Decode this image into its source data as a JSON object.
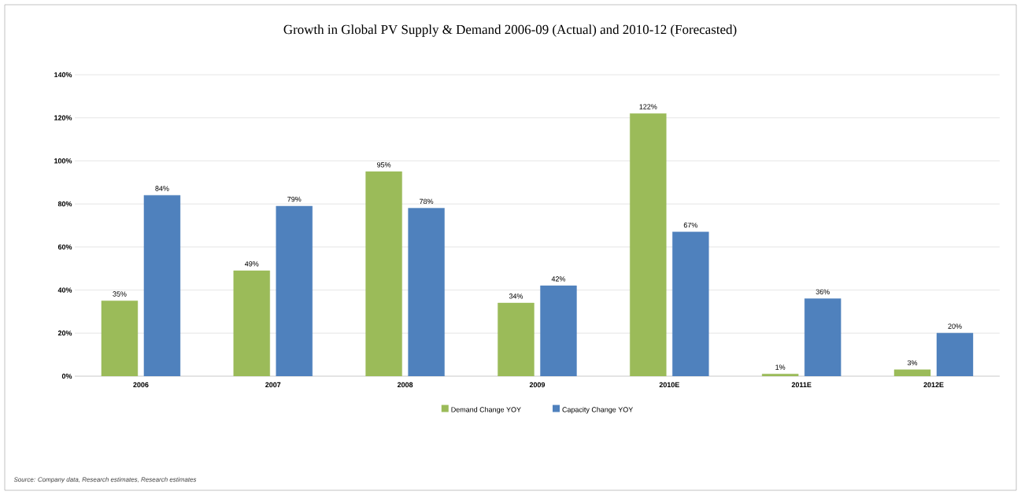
{
  "chart_data": {
    "type": "bar",
    "title": "Growth in Global PV Supply & Demand 2006-09 (Actual) and 2010-12 (Forecasted)",
    "categories": [
      "2006",
      "2007",
      "2008",
      "2009",
      "2010E",
      "2011E",
      "2012E"
    ],
    "series": [
      {
        "name": "Demand Change YOY",
        "color": "#9bbb59",
        "values": [
          35,
          49,
          95,
          34,
          122,
          1,
          3
        ],
        "value_labels": [
          "35%",
          "49%",
          "95%",
          "34%",
          "122%",
          "1%",
          "3%"
        ]
      },
      {
        "name": "Capacity Change YOY",
        "color": "#4f81bd",
        "values": [
          84,
          79,
          78,
          42,
          67,
          36,
          20
        ],
        "value_labels": [
          "84%",
          "79%",
          "78%",
          "42%",
          "67%",
          "36%",
          "20%"
        ]
      }
    ],
    "ylim": [
      0,
      140
    ],
    "yticks": [
      {
        "value": 0,
        "label": "0%"
      },
      {
        "value": 20,
        "label": "20%"
      },
      {
        "value": 40,
        "label": "40%"
      },
      {
        "value": 60,
        "label": "60%"
      },
      {
        "value": 80,
        "label": "80%"
      },
      {
        "value": 100,
        "label": "100%"
      },
      {
        "value": 120,
        "label": "120%"
      },
      {
        "value": 140,
        "label": "140%"
      }
    ],
    "grid": "y",
    "legend": "bottom",
    "annotations": [
      "Source: Company data, Research estimates, Research estimates"
    ]
  }
}
